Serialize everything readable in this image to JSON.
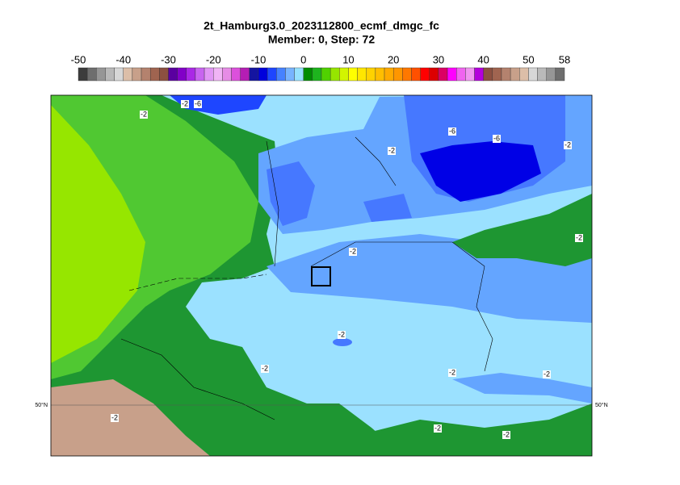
{
  "title": "2t_Hamburg3.0_2023112800_ecmf_dmgc_fc",
  "subtitle": "Member: 0, Step: 72",
  "colorbar": {
    "min": -50,
    "max": 58,
    "ticks": [
      -50,
      -40,
      -30,
      -20,
      -10,
      0,
      10,
      20,
      30,
      40,
      50,
      58
    ],
    "colors": [
      "#3c3c3c",
      "#6e6e6e",
      "#969696",
      "#b9b9b9",
      "#d7d7d7",
      "#dcbea8",
      "#c8a08a",
      "#b4826e",
      "#a06450",
      "#8c5040",
      "#5a00a0",
      "#8200c8",
      "#aa28e6",
      "#c864f0",
      "#e196f5",
      "#f0b4f5",
      "#e68ce6",
      "#dc50dc",
      "#b41eb4",
      "#1414a0",
      "#0000dc",
      "#1e46ff",
      "#4682ff",
      "#78b4ff",
      "#96e1ff",
      "#008c00",
      "#1eb41e",
      "#50d200",
      "#96e600",
      "#d2f500",
      "#ffff00",
      "#ffe600",
      "#ffd200",
      "#ffbe00",
      "#ffaa00",
      "#ff9600",
      "#ff7800",
      "#ff5000",
      "#ff0000",
      "#dc0000",
      "#dc0064",
      "#ff00ff",
      "#f064f0",
      "#f096f0",
      "#b400dc",
      "#8c5040",
      "#a06450",
      "#b4826e",
      "#c8a08a",
      "#dcbea8",
      "#d7d7d7",
      "#b9b9b9",
      "#969696",
      "#6e6e6e"
    ]
  },
  "latitude_label": "50°N",
  "contour_labels": [
    "-2",
    "-2",
    "-6",
    "-6",
    "-6",
    "-2",
    "-2",
    "-2",
    "-2",
    "-2",
    "-2",
    "-2",
    "-2",
    "-2",
    "-2",
    "-2"
  ]
}
